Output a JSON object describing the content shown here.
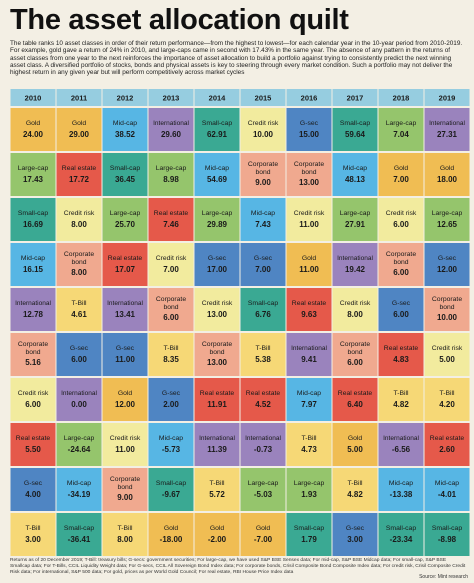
{
  "title": "The asset allocation quilt",
  "intro": "The table ranks 10 asset classes in order of their return performance—from the highest to lowest—for each calendar year in the 10-year period from 2010-2019. For example, gold gave a return of 24% in 2010, and large-caps came in second with 17.43% in the same year. The absence of any pattern in the returns of asset classes from one year to the next reinforces the importance of asset allocation to build a portfolio against trying to consistently predict the next winning asset class. A diversified portfolio of stocks, bonds and physical assets is key to steering through every market condition. Such a portfolio may not deliver the highest return in any given year but will perform competitively across market cycles",
  "notes": "Returns as of 20 December 2019; T-Bill: treasury bills; G-secs: government securities; For large-cap, we have used S&P BSE Sensex data; For mid-cap, S&P BSE Midcap data; For small-cap, S&P BSE Smallcap data; For T-Bills, CCIL Liquidity Weight data; For G-secs, CCIL All Sovereign Bond Index data; For corporate bonds, Crisil Composite Bond Composite Index data; For credit risk, Crisil Composite Credit Risk data; For international, S&P 500 data; For gold, prices as per World Gold Council; For real estate, RBI House Price Index data",
  "source": "Source: Mint research",
  "colors": {
    "Gold": "#f0bd53",
    "Large-cap": "#95c56c",
    "Small-cap": "#3aa993",
    "Mid-cap": "#57b6e4",
    "Credit risk": "#f2eb9e",
    "Real estate": "#e5594a",
    "International": "#9a83bd",
    "Corporate bond": "#f0a98f",
    "G-sec": "#4f85c3",
    "T-Bill": "#f6d876",
    "header": "#96cde0"
  },
  "chart_data": {
    "type": "table",
    "years": [
      "2010",
      "2011",
      "2012",
      "2013",
      "2014",
      "2015",
      "2016",
      "2017",
      "2018",
      "2019"
    ],
    "columns": [
      {
        "year": "2010",
        "cells": [
          {
            "asset": "Gold",
            "value": "24.00"
          },
          {
            "asset": "Large-cap",
            "value": "17.43"
          },
          {
            "asset": "Small-cap",
            "value": "16.69"
          },
          {
            "asset": "Mid-cap",
            "value": "16.15"
          },
          {
            "asset": "International",
            "value": "12.78"
          },
          {
            "asset": "Corporate bond",
            "value": "5.16"
          },
          {
            "asset": "Credit risk",
            "value": "6.00"
          },
          {
            "asset": "Real estate",
            "value": "5.50"
          },
          {
            "asset": "G-sec",
            "value": "4.00"
          },
          {
            "asset": "T-Bill",
            "value": "3.00"
          }
        ]
      },
      {
        "year": "2011",
        "cells": [
          {
            "asset": "Gold",
            "value": "29.00"
          },
          {
            "asset": "Real estate",
            "value": "17.72"
          },
          {
            "asset": "Credit risk",
            "value": "8.00"
          },
          {
            "asset": "Corporate bond",
            "value": "8.00"
          },
          {
            "asset": "T-Bill",
            "value": "4.61"
          },
          {
            "asset": "G-sec",
            "value": "6.00"
          },
          {
            "asset": "International",
            "value": "0.00"
          },
          {
            "asset": "Large-cap",
            "value": "-24.64"
          },
          {
            "asset": "Mid-cap",
            "value": "-34.19"
          },
          {
            "asset": "Small-cap",
            "value": "-36.41"
          }
        ]
      },
      {
        "year": "2012",
        "cells": [
          {
            "asset": "Mid-cap",
            "value": "38.52"
          },
          {
            "asset": "Small-cap",
            "value": "36.45"
          },
          {
            "asset": "Large-cap",
            "value": "25.70"
          },
          {
            "asset": "Real estate",
            "value": "17.07"
          },
          {
            "asset": "International",
            "value": "13.41"
          },
          {
            "asset": "G-sec",
            "value": "11.00"
          },
          {
            "asset": "Gold",
            "value": "12.00"
          },
          {
            "asset": "Credit risk",
            "value": "11.00"
          },
          {
            "asset": "Corporate bond",
            "value": "9.00"
          },
          {
            "asset": "T-Bill",
            "value": "8.00"
          }
        ]
      },
      {
        "year": "2013",
        "cells": [
          {
            "asset": "International",
            "value": "29.60"
          },
          {
            "asset": "Large-cap",
            "value": "8.98"
          },
          {
            "asset": "Real estate",
            "value": "7.46"
          },
          {
            "asset": "Credit risk",
            "value": "7.00"
          },
          {
            "asset": "Corporate bond",
            "value": "6.00"
          },
          {
            "asset": "T-Bill",
            "value": "8.35"
          },
          {
            "asset": "G-sec",
            "value": "2.00"
          },
          {
            "asset": "Mid-cap",
            "value": "-5.73"
          },
          {
            "asset": "Small-cap",
            "value": "-9.67"
          },
          {
            "asset": "Gold",
            "value": "-18.00"
          }
        ]
      },
      {
        "year": "2014",
        "cells": [
          {
            "asset": "Small-cap",
            "value": "62.91"
          },
          {
            "asset": "Mid-cap",
            "value": "54.69"
          },
          {
            "asset": "Large-cap",
            "value": "29.89"
          },
          {
            "asset": "G-sec",
            "value": "17.00"
          },
          {
            "asset": "Credit risk",
            "value": "13.00"
          },
          {
            "asset": "Corporate bond",
            "value": "13.00"
          },
          {
            "asset": "Real estate",
            "value": "11.91"
          },
          {
            "asset": "International",
            "value": "11.39"
          },
          {
            "asset": "T-Bill",
            "value": "5.72"
          },
          {
            "asset": "Gold",
            "value": "-2.00"
          }
        ]
      },
      {
        "year": "2015",
        "cells": [
          {
            "asset": "Credit risk",
            "value": "10.00"
          },
          {
            "asset": "Corporate bond",
            "value": "9.00"
          },
          {
            "asset": "Mid-cap",
            "value": "7.43"
          },
          {
            "asset": "G-sec",
            "value": "7.00"
          },
          {
            "asset": "Small-cap",
            "value": "6.76"
          },
          {
            "asset": "T-Bill",
            "value": "5.38"
          },
          {
            "asset": "Real estate",
            "value": "4.52"
          },
          {
            "asset": "International",
            "value": "-0.73"
          },
          {
            "asset": "Large-cap",
            "value": "-5.03"
          },
          {
            "asset": "Gold",
            "value": "-7.00"
          }
        ]
      },
      {
        "year": "2016",
        "cells": [
          {
            "asset": "G-sec",
            "value": "15.00"
          },
          {
            "asset": "Corporate bond",
            "value": "13.00"
          },
          {
            "asset": "Credit risk",
            "value": "11.00"
          },
          {
            "asset": "Gold",
            "value": "11.00"
          },
          {
            "asset": "Real estate",
            "value": "9.63"
          },
          {
            "asset": "International",
            "value": "9.41"
          },
          {
            "asset": "Mid-cap",
            "value": "7.97"
          },
          {
            "asset": "T-Bill",
            "value": "4.73"
          },
          {
            "asset": "Large-cap",
            "value": "1.93"
          },
          {
            "asset": "Small-cap",
            "value": "1.79"
          }
        ]
      },
      {
        "year": "2017",
        "cells": [
          {
            "asset": "Small-cap",
            "value": "59.64"
          },
          {
            "asset": "Mid-cap",
            "value": "48.13"
          },
          {
            "asset": "Large-cap",
            "value": "27.91"
          },
          {
            "asset": "International",
            "value": "19.42"
          },
          {
            "asset": "Credit risk",
            "value": "8.00"
          },
          {
            "asset": "Corporate bond",
            "value": "6.00"
          },
          {
            "asset": "Real estate",
            "value": "6.40"
          },
          {
            "asset": "Gold",
            "value": "5.00"
          },
          {
            "asset": "T-Bill",
            "value": "4.82"
          },
          {
            "asset": "G-sec",
            "value": "3.00"
          }
        ]
      },
      {
        "year": "2018",
        "cells": [
          {
            "asset": "Large-cap",
            "value": "7.04"
          },
          {
            "asset": "Gold",
            "value": "7.00"
          },
          {
            "asset": "Credit risk",
            "value": "6.00"
          },
          {
            "asset": "Corporate bond",
            "value": "6.00"
          },
          {
            "asset": "G-sec",
            "value": "6.00"
          },
          {
            "asset": "Real estate",
            "value": "4.83"
          },
          {
            "asset": "T-Bill",
            "value": "4.82"
          },
          {
            "asset": "International",
            "value": "-6.56"
          },
          {
            "asset": "Mid-cap",
            "value": "-13.38"
          },
          {
            "asset": "Small-cap",
            "value": "-23.34"
          }
        ]
      },
      {
        "year": "2019",
        "cells": [
          {
            "asset": "International",
            "value": "27.31"
          },
          {
            "asset": "Gold",
            "value": "18.00"
          },
          {
            "asset": "Large-cap",
            "value": "12.65"
          },
          {
            "asset": "G-sec",
            "value": "12.00"
          },
          {
            "asset": "Corporate bond",
            "value": "10.00"
          },
          {
            "asset": "Credit risk",
            "value": "5.00"
          },
          {
            "asset": "T-Bill",
            "value": "4.20"
          },
          {
            "asset": "Real estate",
            "value": "2.60"
          },
          {
            "asset": "Mid-cap",
            "value": "-4.01"
          },
          {
            "asset": "Small-cap",
            "value": "-8.98"
          }
        ]
      }
    ]
  }
}
